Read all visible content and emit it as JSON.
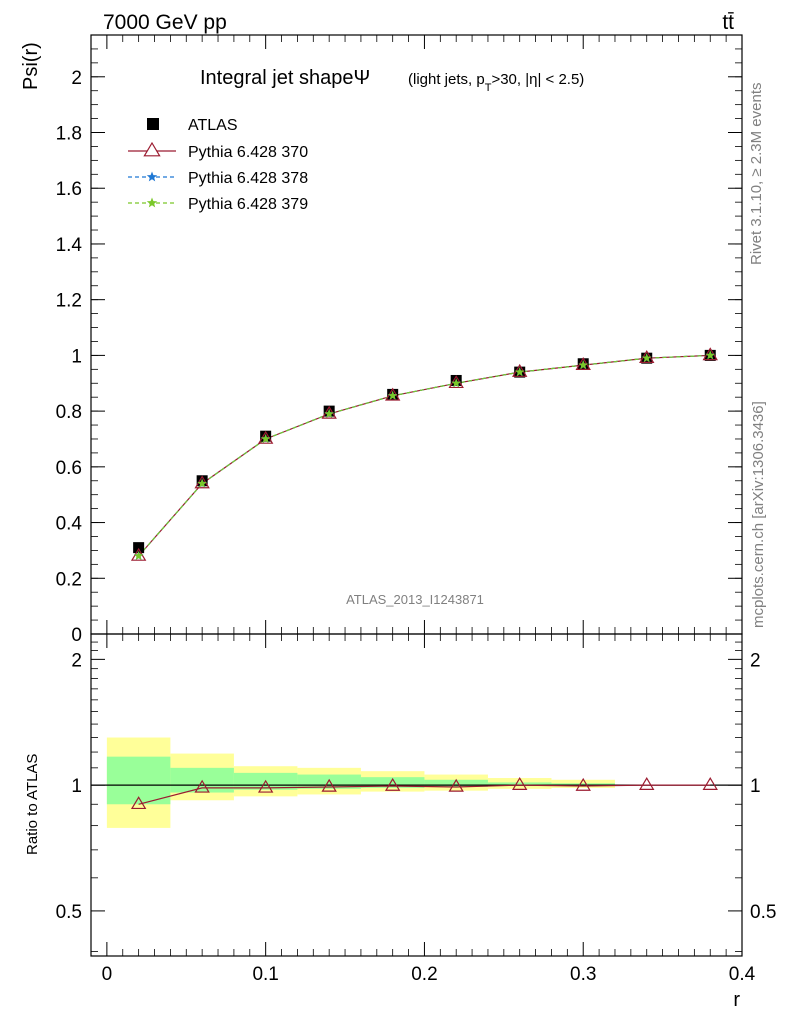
{
  "header": {
    "energy_label": "7000 GeV pp",
    "process_label": "tt̄"
  },
  "side_labels": {
    "rivet": "Rivet 3.1.10, ≥ 2.3M events",
    "mcplots": "mcplots.cern.ch [arXiv:1306.3436]"
  },
  "watermark": "ATLAS_2013_I1243871",
  "chart_data": [
    {
      "type": "line",
      "title": "Integral jet shapeΨ",
      "subtitle": "(light jets, p_T>30, |η| < 2.5)",
      "title_parts": {
        "main": "Integral jet shapeΨ",
        "sub_a": "(light jets, p",
        "sub_sub": "T",
        "sub_b": ">30, |η| < 2.5)"
      },
      "xlabel": "r",
      "ylabel": "Psi(r)",
      "xlim": [
        -0.01,
        0.4
      ],
      "ylim": [
        0,
        2.15
      ],
      "yticks": [
        "0",
        "0.2",
        "0.4",
        "0.6",
        "0.8",
        "1",
        "1.2",
        "1.4",
        "1.6",
        "1.8",
        "2"
      ],
      "ytick_values": [
        0,
        0.2,
        0.4,
        0.6,
        0.8,
        1,
        1.2,
        1.4,
        1.6,
        1.8,
        2
      ],
      "legend_placement": "top-left",
      "x": [
        0.02,
        0.06,
        0.1,
        0.14,
        0.18,
        0.22,
        0.26,
        0.3,
        0.34,
        0.38
      ],
      "series": [
        {
          "name": "ATLAS",
          "marker": "square",
          "color": "#000000",
          "values": [
            0.31,
            0.55,
            0.71,
            0.8,
            0.86,
            0.91,
            0.94,
            0.97,
            0.99,
            1.0
          ]
        },
        {
          "name": "Pythia 6.428 370",
          "marker": "open-triangle",
          "color": "#9b1b30",
          "line": "solid",
          "values": [
            0.28,
            0.54,
            0.7,
            0.79,
            0.855,
            0.9,
            0.94,
            0.965,
            0.99,
            1.0
          ]
        },
        {
          "name": "Pythia 6.428 378",
          "marker": "star",
          "color": "#1f78d4",
          "line": "dashed",
          "values": [
            0.28,
            0.54,
            0.7,
            0.79,
            0.855,
            0.9,
            0.94,
            0.965,
            0.99,
            1.0
          ]
        },
        {
          "name": "Pythia 6.428 379",
          "marker": "star",
          "color": "#7ac829",
          "line": "dashed",
          "values": [
            0.28,
            0.54,
            0.7,
            0.79,
            0.855,
            0.9,
            0.94,
            0.965,
            0.99,
            1.0
          ]
        }
      ]
    },
    {
      "type": "line",
      "ylabel": "Ratio to ATLAS",
      "xlabel": "r",
      "xlim": [
        -0.01,
        0.4
      ],
      "ylim": [
        0.39,
        2.3
      ],
      "y_scale": "log",
      "yticks": [
        "0.5",
        "1",
        "2"
      ],
      "ytick_values": [
        0.5,
        1,
        2
      ],
      "xticks": [
        "0",
        "0.1",
        "0.2",
        "0.3",
        "0.4"
      ],
      "xtick_values": [
        0,
        0.1,
        0.2,
        0.3,
        0.4
      ],
      "bands": {
        "bin_edges": [
          0.0,
          0.04,
          0.08,
          0.12,
          0.16,
          0.2,
          0.24,
          0.28,
          0.32
        ],
        "yellow_color": "#ffff99",
        "green_color": "#99ff99",
        "yellow": [
          [
            0.79,
            1.3
          ],
          [
            0.92,
            1.19
          ],
          [
            0.94,
            1.11
          ],
          [
            0.95,
            1.1
          ],
          [
            0.965,
            1.08
          ],
          [
            0.97,
            1.06
          ],
          [
            0.98,
            1.04
          ],
          [
            0.985,
            1.03
          ]
        ],
        "green": [
          [
            0.9,
            1.17
          ],
          [
            0.96,
            1.1
          ],
          [
            0.975,
            1.07
          ],
          [
            0.98,
            1.06
          ],
          [
            0.985,
            1.045
          ],
          [
            0.99,
            1.03
          ],
          [
            0.995,
            1.015
          ],
          [
            0.998,
            1.01
          ]
        ]
      },
      "series": [
        {
          "name": "Pythia 6.428 370",
          "color": "#9b1b30",
          "values": [
            0.9,
            0.985,
            0.985,
            0.99,
            0.995,
            0.99,
            1.0,
            0.995,
            1.0,
            1.0
          ]
        }
      ]
    }
  ]
}
